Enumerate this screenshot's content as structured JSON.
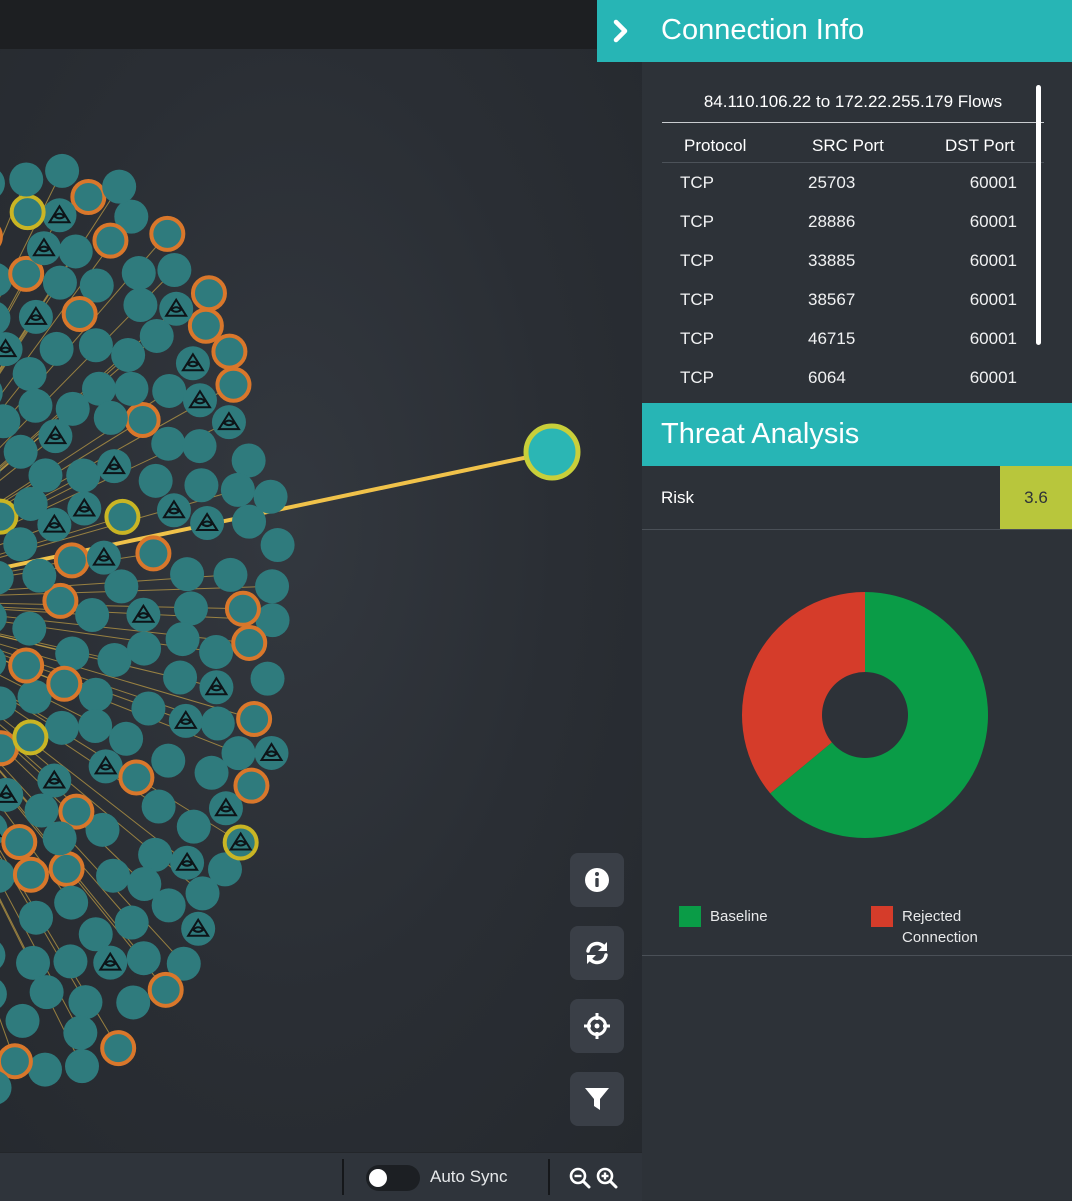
{
  "connection_info": {
    "title": "Connection Info",
    "flows_title": "84.110.106.22 to 172.22.255.179 Flows",
    "columns": [
      "Protocol",
      "SRC Port",
      "DST Port"
    ],
    "rows": [
      {
        "protocol": "TCP",
        "src_port": "25703",
        "dst_port": "60001"
      },
      {
        "protocol": "TCP",
        "src_port": "28886",
        "dst_port": "60001"
      },
      {
        "protocol": "TCP",
        "src_port": "33885",
        "dst_port": "60001"
      },
      {
        "protocol": "TCP",
        "src_port": "38567",
        "dst_port": "60001"
      },
      {
        "protocol": "TCP",
        "src_port": "46715",
        "dst_port": "60001"
      },
      {
        "protocol": "TCP",
        "src_port": "6064",
        "dst_port": "60001"
      }
    ]
  },
  "threat_analysis": {
    "title": "Threat Analysis",
    "risk_label": "Risk",
    "risk_value": "3.6",
    "risk_color": "#b8c63c"
  },
  "chart_data": {
    "type": "pie",
    "title": "",
    "labels": [
      "Baseline",
      "Rejected Connection"
    ],
    "values": [
      64,
      36
    ],
    "colors": [
      "#0a9c47",
      "#d53c2a"
    ],
    "legend_position": "bottom"
  },
  "toolbar": {
    "icons": [
      "info-icon",
      "refresh-icon",
      "crosshair-icon",
      "filter-icon"
    ]
  },
  "bottom_bar": {
    "auto_sync_label": "Auto Sync",
    "auto_sync_on": false,
    "zoom_icons": [
      "zoom-out-icon",
      "zoom-in-icon"
    ]
  },
  "graph": {
    "node_color": "#2f7b7d",
    "highlight_node_color": "#2bb6b4",
    "edge_color": "#f0c24a",
    "ring_colors": [
      "#d9772b",
      "#c9b524"
    ]
  }
}
